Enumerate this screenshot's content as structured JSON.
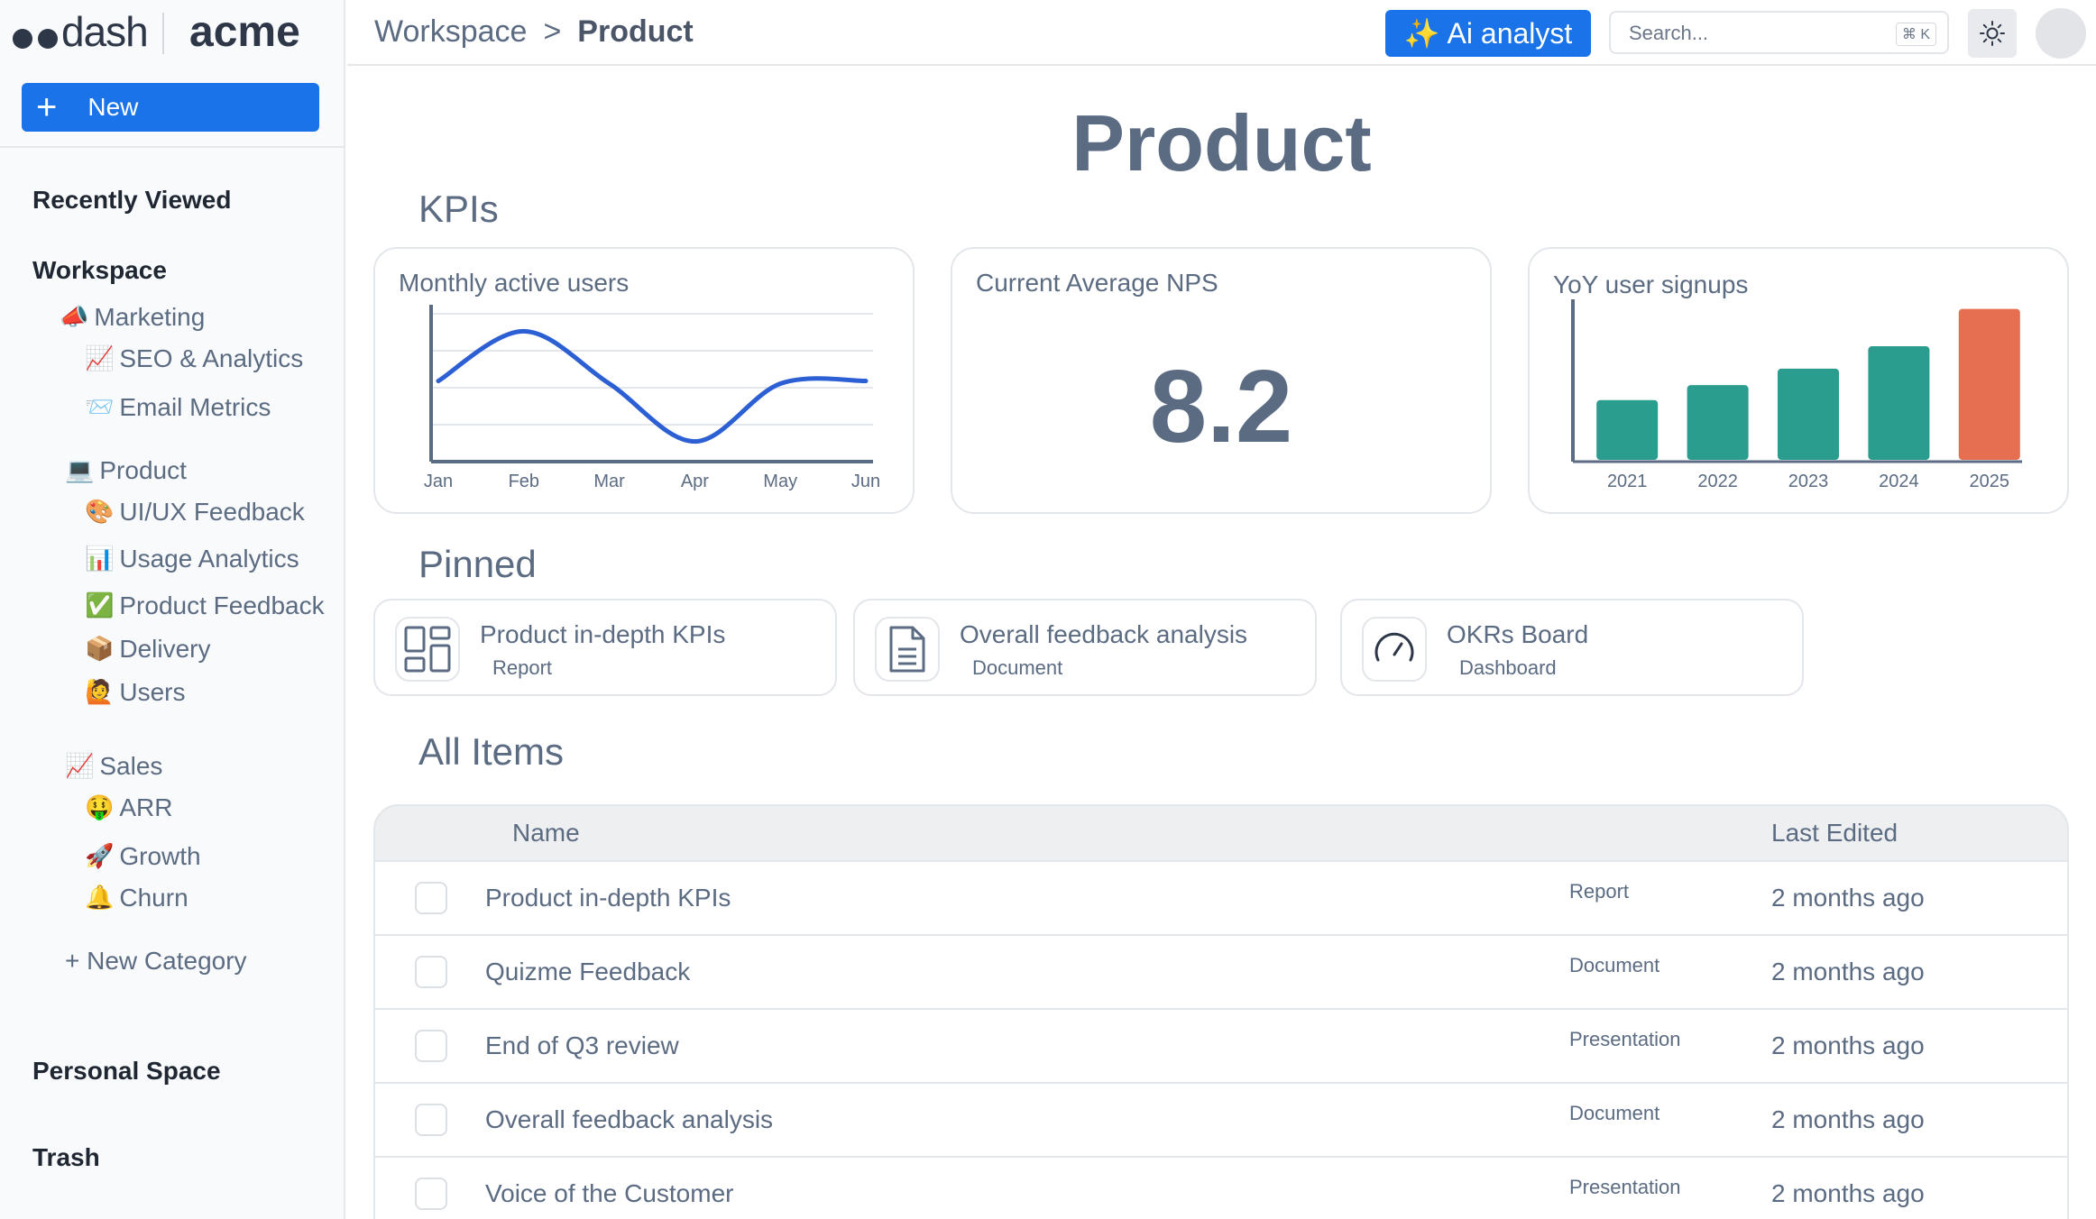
{
  "brand": {
    "logo_text": "dash",
    "workspace_name": "acme"
  },
  "sidebar": {
    "new_label": "New",
    "recently_viewed": "Recently Viewed",
    "workspace": "Workspace",
    "categories": [
      {
        "emoji": "📣",
        "label": "Marketing",
        "children": [
          {
            "emoji": "📈",
            "label": "SEO & Analytics"
          },
          {
            "emoji": "📨",
            "label": "Email Metrics"
          }
        ]
      },
      {
        "emoji": "💻",
        "label": "Product",
        "children": [
          {
            "emoji": "🎨",
            "label": "UI/UX Feedback"
          },
          {
            "emoji": "📊",
            "label": "Usage Analytics"
          },
          {
            "emoji": "✅",
            "label": "Product Feedback"
          },
          {
            "emoji": "📦",
            "label": "Delivery"
          },
          {
            "emoji": "🙋",
            "label": "Users"
          }
        ]
      },
      {
        "emoji": "📈",
        "label": "Sales",
        "children": [
          {
            "emoji": "🤑",
            "label": "ARR"
          },
          {
            "emoji": "🚀",
            "label": "Growth"
          },
          {
            "emoji": "🔔",
            "label": "Churn"
          }
        ]
      }
    ],
    "new_category": "+ New Category",
    "personal_space": "Personal Space",
    "trash": "Trash"
  },
  "header": {
    "breadcrumb": [
      "Workspace",
      ">",
      "Product"
    ],
    "ai_label": "Ai analyst",
    "ai_icon": "✨",
    "search_placeholder": "Search...",
    "search_shortcut": "⌘ K"
  },
  "main": {
    "title": "Product",
    "kpis_heading": "KPIs",
    "pinned_heading": "Pinned",
    "all_items_heading": "All Items"
  },
  "kpis": {
    "mau_label": "Monthly active users",
    "nps_label": "Current Average NPS",
    "nps_value": "8.2",
    "signups_label": "YoY user signups"
  },
  "chart_data": [
    {
      "type": "line",
      "title": "Monthly active users",
      "categories": [
        "Jan",
        "Feb",
        "Mar",
        "Apr",
        "May",
        "Jun"
      ],
      "values": [
        0.6,
        0.97,
        0.58,
        0.15,
        0.58,
        0.6
      ],
      "ylim": [
        0,
        1.1
      ],
      "color": "#2c5fd4",
      "grid": true
    },
    {
      "type": "bar",
      "title": "YoY user signups",
      "categories": [
        "2021",
        "2022",
        "2023",
        "2024",
        "2025"
      ],
      "values": [
        40,
        50,
        61,
        76,
        101
      ],
      "ylim": [
        0,
        105
      ],
      "colors": [
        "#2a9d8f",
        "#2a9d8f",
        "#2a9d8f",
        "#2a9d8f",
        "#e76f51"
      ]
    }
  ],
  "pinned": [
    {
      "title": "Product in-depth KPIs",
      "type": "Report",
      "icon": "layout-grid-icon"
    },
    {
      "title": "Overall feedback analysis",
      "type": "Document",
      "icon": "document-icon"
    },
    {
      "title": "OKRs Board",
      "type": "Dashboard",
      "icon": "gauge-icon"
    }
  ],
  "table": {
    "col_name": "Name",
    "col_edited": "Last Edited",
    "rows": [
      {
        "name": "Product in-depth KPIs",
        "type": "Report",
        "edited": "2 months ago"
      },
      {
        "name": "Quizme Feedback",
        "type": "Document",
        "edited": "2 months ago"
      },
      {
        "name": "End of Q3 review",
        "type": "Presentation",
        "edited": "2 months ago"
      },
      {
        "name": "Overall feedback analysis",
        "type": "Document",
        "edited": "2 months ago"
      },
      {
        "name": "Voice of the Customer",
        "type": "Presentation",
        "edited": "2 months ago"
      }
    ]
  }
}
